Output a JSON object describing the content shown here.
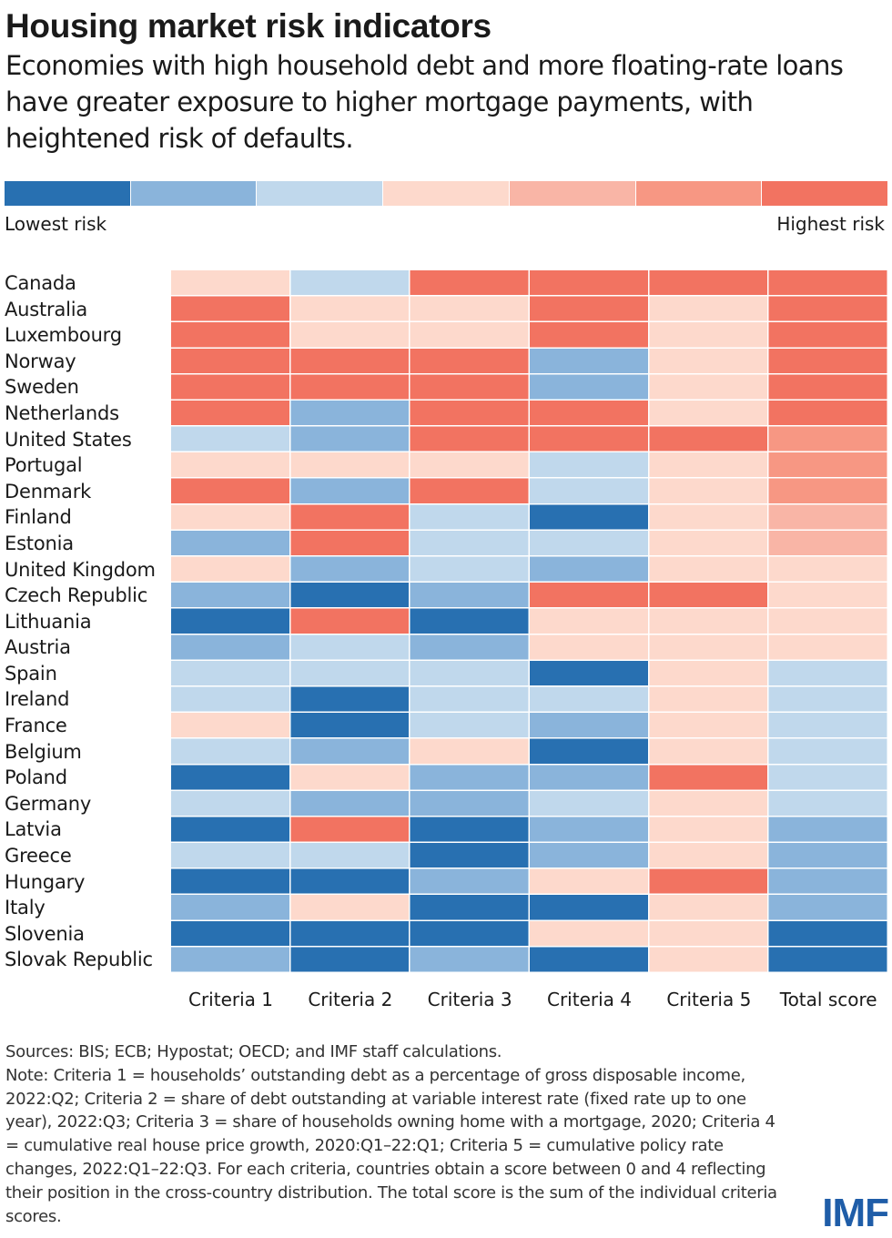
{
  "title": "Housing market risk indicators",
  "subtitle": "Economies with high household debt and more floating-rate loans have greater exposure to higher mortgage payments, with heightened risk of defaults.",
  "chart_data": {
    "type": "heatmap",
    "legend": {
      "low_label": "Lowest risk",
      "high_label": "Highest risk",
      "placement": "top"
    },
    "palette": [
      "#2870b1",
      "#8ab4db",
      "#c0d8ec",
      "#fdd9cc",
      "#f9b5a6",
      "#f79783",
      "#f27361"
    ],
    "columns": [
      "Criteria 1",
      "Criteria 2",
      "Criteria 3",
      "Criteria 4",
      "Criteria 5",
      "Total score"
    ],
    "rows": [
      {
        "country": "Canada",
        "levels": [
          3,
          2,
          6,
          6,
          6,
          6
        ]
      },
      {
        "country": "Australia",
        "levels": [
          6,
          3,
          3,
          6,
          3,
          6
        ]
      },
      {
        "country": "Luxembourg",
        "levels": [
          6,
          3,
          3,
          6,
          3,
          6
        ]
      },
      {
        "country": "Norway",
        "levels": [
          6,
          6,
          6,
          1,
          3,
          6
        ]
      },
      {
        "country": "Sweden",
        "levels": [
          6,
          6,
          6,
          1,
          3,
          6
        ]
      },
      {
        "country": "Netherlands",
        "levels": [
          6,
          1,
          6,
          6,
          3,
          6
        ]
      },
      {
        "country": "United States",
        "levels": [
          2,
          1,
          6,
          6,
          6,
          5
        ]
      },
      {
        "country": "Portugal",
        "levels": [
          3,
          3,
          3,
          2,
          3,
          5
        ]
      },
      {
        "country": "Denmark",
        "levels": [
          6,
          1,
          6,
          2,
          3,
          5
        ]
      },
      {
        "country": "Finland",
        "levels": [
          3,
          6,
          2,
          0,
          3,
          4
        ]
      },
      {
        "country": "Estonia",
        "levels": [
          1,
          6,
          2,
          2,
          3,
          4
        ]
      },
      {
        "country": "United Kingdom",
        "levels": [
          3,
          1,
          2,
          1,
          3,
          3
        ]
      },
      {
        "country": "Czech Republic",
        "levels": [
          1,
          0,
          1,
          6,
          6,
          3
        ]
      },
      {
        "country": "Lithuania",
        "levels": [
          0,
          6,
          0,
          3,
          3,
          3
        ]
      },
      {
        "country": "Austria",
        "levels": [
          1,
          2,
          1,
          3,
          3,
          3
        ]
      },
      {
        "country": "Spain",
        "levels": [
          2,
          2,
          2,
          0,
          3,
          2
        ]
      },
      {
        "country": "Ireland",
        "levels": [
          2,
          0,
          2,
          2,
          3,
          2
        ]
      },
      {
        "country": "France",
        "levels": [
          3,
          0,
          2,
          1,
          3,
          2
        ]
      },
      {
        "country": "Belgium",
        "levels": [
          2,
          1,
          3,
          0,
          3,
          2
        ]
      },
      {
        "country": "Poland",
        "levels": [
          0,
          3,
          1,
          1,
          6,
          2
        ]
      },
      {
        "country": "Germany",
        "levels": [
          2,
          1,
          1,
          2,
          3,
          2
        ]
      },
      {
        "country": "Latvia",
        "levels": [
          0,
          6,
          0,
          1,
          3,
          1
        ]
      },
      {
        "country": "Greece",
        "levels": [
          2,
          2,
          0,
          1,
          3,
          1
        ]
      },
      {
        "country": "Hungary",
        "levels": [
          0,
          0,
          1,
          3,
          6,
          1
        ]
      },
      {
        "country": "Italy",
        "levels": [
          1,
          3,
          0,
          0,
          3,
          1
        ]
      },
      {
        "country": "Slovenia",
        "levels": [
          0,
          0,
          0,
          3,
          3,
          0
        ]
      },
      {
        "country": "Slovak Republic",
        "levels": [
          1,
          0,
          1,
          0,
          3,
          0
        ]
      }
    ]
  },
  "footer": {
    "sources": "Sources: BIS; ECB; Hypostat; OECD; and IMF staff calculations.",
    "note": "Note: Criteria 1 = households’ outstanding debt as a percentage of gross disposable income, 2022:Q2; Criteria 2 = share of debt outstanding at variable interest rate (fixed rate up to one year), 2022:Q3; Criteria 3 = share of households owning home with a mortgage, 2020; Criteria 4 = cumulative real house price growth, 2020:Q1–22:Q1; Criteria 5 = cumulative policy rate changes, 2022:Q1–22:Q3. For each criteria, countries obtain a score between 0 and 4 reflecting their position in the cross-country distribution. The total score is the sum of the individual criteria scores."
  },
  "logo": "IMF"
}
